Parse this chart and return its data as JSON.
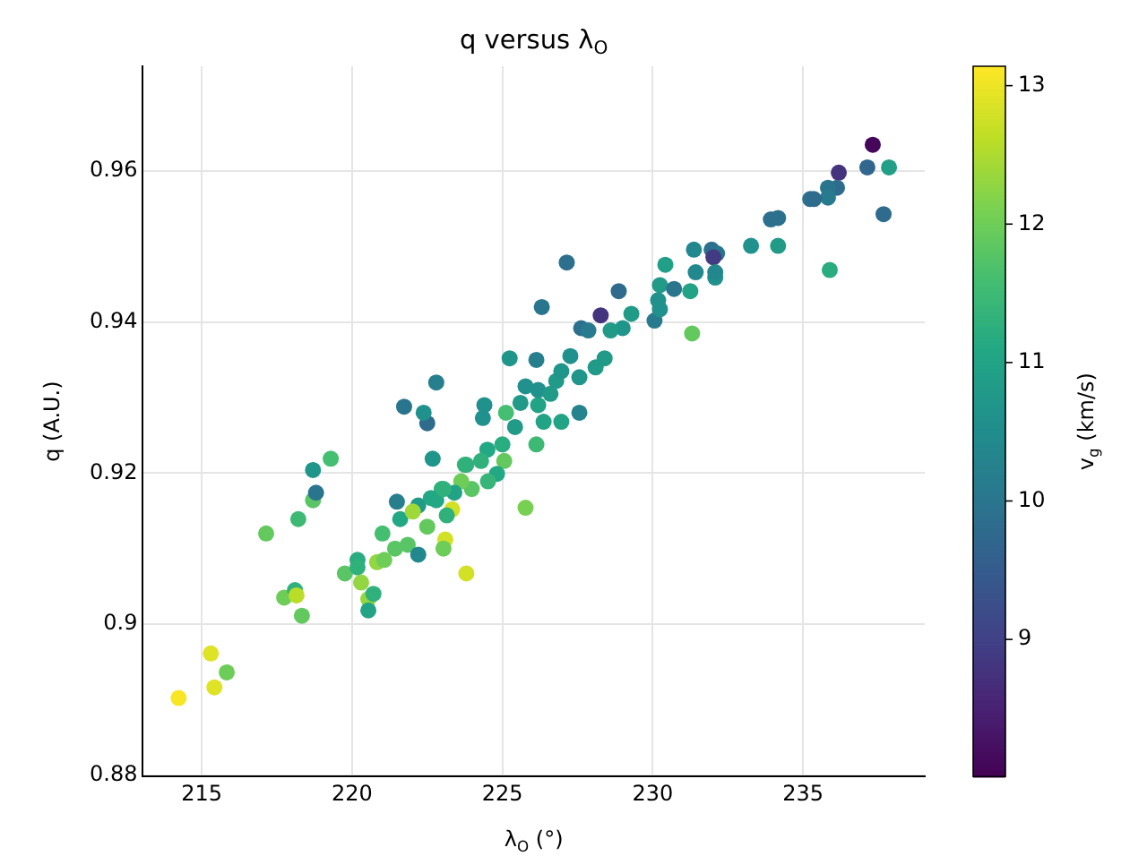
{
  "chart_data": {
    "type": "scatter",
    "title": "q versus λ$_{O}$",
    "xlabel": "λ$_{O}$ (°)",
    "ylabel": "q (A.U.)",
    "clabel": "v$_{g}$ (km/s)",
    "xlim": [
      213.04,
      239.05
    ],
    "xticks": [
      215,
      220,
      225,
      230,
      235
    ],
    "ylim": [
      0.8798,
      0.9739
    ],
    "yticks": [
      0.88,
      0.9,
      0.92,
      0.94,
      0.96
    ],
    "clim": [
      8.01,
      13.14
    ],
    "cticks": [
      9,
      10,
      11,
      12,
      13
    ],
    "grid": true,
    "marker": "circle",
    "x": [
      214.23,
      215.3,
      215.42,
      215.83,
      217.14,
      217.74,
      218.1,
      218.15,
      218.33,
      218.21,
      218.7,
      218.8,
      218.7,
      219.29,
      219.76,
      220.18,
      220.18,
      220.3,
      220.54,
      220.71,
      220.54,
      220.83,
      221.07,
      221.01,
      221.43,
      221.85,
      221.49,
      221.6,
      222.2,
      222.2,
      222.5,
      222.68,
      222.02,
      222.5,
      223.33,
      223.1,
      223.04,
      222.98,
      222.8,
      223.15,
      223.8,
      223.75,
      227.14,
      226.31,
      228.27,
      227.62,
      227.86,
      225.24,
      226.13,
      227.26,
      222.8,
      221.73,
      222.38,
      224.4,
      224.35,
      225.12,
      225.77,
      226.19,
      226.6,
      226.79,
      226.96,
      227.56,
      228.1,
      228.4,
      227.56,
      226.96,
      226.37,
      226.19,
      225.6,
      225.42,
      225.0,
      226.13,
      224.5,
      225.06,
      224.29,
      223.8,
      224.82,
      224.52,
      223.98,
      223.63,
      223.4,
      223.04,
      222.62,
      225.77,
      230.42,
      230.24,
      230.71,
      230.18,
      230.06,
      230.24,
      229.29,
      228.87,
      229.0,
      228.6,
      237.32,
      237.14,
      237.86,
      236.19,
      237.68,
      236.13,
      235.83,
      235.83,
      235.24,
      235.36,
      235.89,
      234.17,
      233.93,
      234.17,
      233.27,
      231.96,
      232.14,
      232.02,
      231.37,
      232.08,
      232.08,
      231.43,
      231.25,
      231.31
    ],
    "values": [
      0.8902,
      0.8961,
      0.8916,
      0.8936,
      0.912,
      0.9035,
      0.9045,
      0.9038,
      0.9011,
      0.9139,
      0.9164,
      0.9174,
      0.9204,
      0.9219,
      0.9067,
      0.9085,
      0.9075,
      0.9055,
      0.9033,
      0.904,
      0.9018,
      0.9082,
      0.9085,
      0.912,
      0.91,
      0.9105,
      0.9162,
      0.9139,
      0.9092,
      0.9157,
      0.9266,
      0.9219,
      0.9149,
      0.9129,
      0.9152,
      0.9112,
      0.91,
      0.9179,
      0.9164,
      0.9144,
      0.9067,
      0.9211,
      0.9479,
      0.942,
      0.9409,
      0.9392,
      0.9389,
      0.9352,
      0.935,
      0.9355,
      0.932,
      0.9288,
      0.928,
      0.929,
      0.9273,
      0.928,
      0.9315,
      0.931,
      0.9305,
      0.9322,
      0.9335,
      0.9327,
      0.934,
      0.9352,
      0.928,
      0.9268,
      0.9268,
      0.929,
      0.9293,
      0.9261,
      0.9238,
      0.9238,
      0.9231,
      0.9216,
      0.9216,
      0.9211,
      0.9199,
      0.9189,
      0.9179,
      0.9189,
      0.9174,
      0.9179,
      0.9167,
      0.9154,
      0.9476,
      0.9449,
      0.9444,
      0.9429,
      0.9402,
      0.9417,
      0.9411,
      0.9441,
      0.9392,
      0.9389,
      0.9635,
      0.9605,
      0.9605,
      0.9598,
      0.9543,
      0.9578,
      0.9578,
      0.9565,
      0.9563,
      0.9563,
      0.9469,
      0.9538,
      0.9536,
      0.9501,
      0.9501,
      0.9496,
      0.9491,
      0.9486,
      0.9496,
      0.9459,
      0.9466,
      0.9466,
      0.9441,
      0.9385
    ],
    "cvalues": [
      13.1,
      12.9,
      12.9,
      12.0,
      11.9,
      12.0,
      11.3,
      12.6,
      11.9,
      11.5,
      11.8,
      10.0,
      10.7,
      11.6,
      11.8,
      11.2,
      11.3,
      12.3,
      12.3,
      11.3,
      11.0,
      12.3,
      12.0,
      11.6,
      11.8,
      11.8,
      10.2,
      11.1,
      10.4,
      10.8,
      9.8,
      10.7,
      12.4,
      11.9,
      12.8,
      12.8,
      12.0,
      11.3,
      11.1,
      11.3,
      12.8,
      11.5,
      9.9,
      10.0,
      8.8,
      9.9,
      10.1,
      10.7,
      10.2,
      10.6,
      10.2,
      10.0,
      10.6,
      10.6,
      10.6,
      11.6,
      10.6,
      10.6,
      10.8,
      10.8,
      10.7,
      10.7,
      10.8,
      10.8,
      10.3,
      11.0,
      11.0,
      11.0,
      10.8,
      10.8,
      11.2,
      11.5,
      11.1,
      11.9,
      11.3,
      11.3,
      11.1,
      11.4,
      11.8,
      12.0,
      11.0,
      11.3,
      11.1,
      12.1,
      10.9,
      10.8,
      10.0,
      10.6,
      10.1,
      10.6,
      10.8,
      9.8,
      10.7,
      10.8,
      8.1,
      9.7,
      10.9,
      8.8,
      9.8,
      9.8,
      10.0,
      10.1,
      9.9,
      9.8,
      11.2,
      9.9,
      9.9,
      10.8,
      10.6,
      9.9,
      10.0,
      8.9,
      10.4,
      10.6,
      10.4,
      10.4,
      11.0,
      11.9
    ]
  }
}
